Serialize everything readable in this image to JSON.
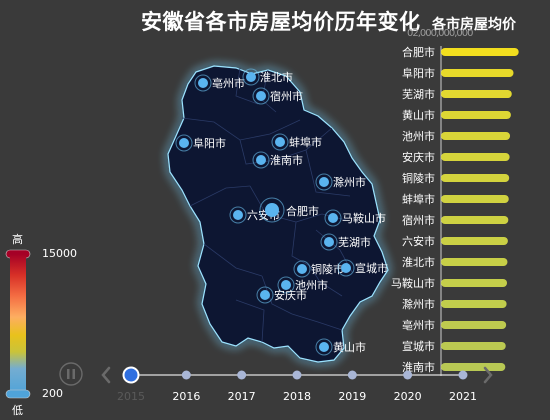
{
  "title": "安徽省各市房屋均价历年变化",
  "bar_title": "各市房屋均价",
  "axis_top_text": "02,000,000,000",
  "visual_map": {
    "high_label": "高",
    "low_label": "低",
    "max_value": "15000",
    "min_value": "200",
    "colors": [
      "#313695",
      "#4575b4",
      "#74add1",
      "#abd9e9",
      "#e0f3f8",
      "#ffffbf",
      "#fee090",
      "#fdae61",
      "#f46d43",
      "#d73027",
      "#a50026"
    ]
  },
  "timeline": {
    "years": [
      "2015",
      "2016",
      "2017",
      "2018",
      "2019",
      "2020",
      "2021"
    ],
    "current_index": 0,
    "play_icon": "pause-icon",
    "prev_icon": "chevron-left-icon",
    "next_icon": "chevron-right-icon"
  },
  "map_labels": [
    "亳州市",
    "淮北市",
    "宿州市",
    "阜阳市",
    "蚌埠市",
    "淮南市",
    "滁州市",
    "六安市",
    "合肥市",
    "马鞍山市",
    "芜湖市",
    "铜陵市",
    "宣城市",
    "池州市",
    "安庆市",
    "黄山市"
  ],
  "chart_data": {
    "type": "bar",
    "categories": [
      "合肥市",
      "阜阳市",
      "芜湖市",
      "黄山市",
      "池州市",
      "安庆市",
      "铜陵市",
      "蚌埠市",
      "宿州市",
      "六安市",
      "淮北市",
      "马鞍山市",
      "滁州市",
      "亳州市",
      "宣城市",
      "淮南市"
    ],
    "values": [
      9000,
      8400,
      8200,
      8100,
      8000,
      7950,
      7900,
      7850,
      7800,
      7750,
      7700,
      7650,
      7600,
      7550,
      7500,
      7450
    ],
    "xlim": [
      0,
      9500
    ],
    "orientation": "horizontal",
    "colors": [
      "#f2de1e",
      "#e7d92a",
      "#e2d830",
      "#ddd634",
      "#d9d538",
      "#d6d43b",
      "#d3d33d",
      "#d0d240",
      "#cdd142",
      "#cad045",
      "#c7cf47",
      "#c4ce4a",
      "#c1cd4c",
      "#beca4f",
      "#bbc951",
      "#b8c854"
    ]
  }
}
